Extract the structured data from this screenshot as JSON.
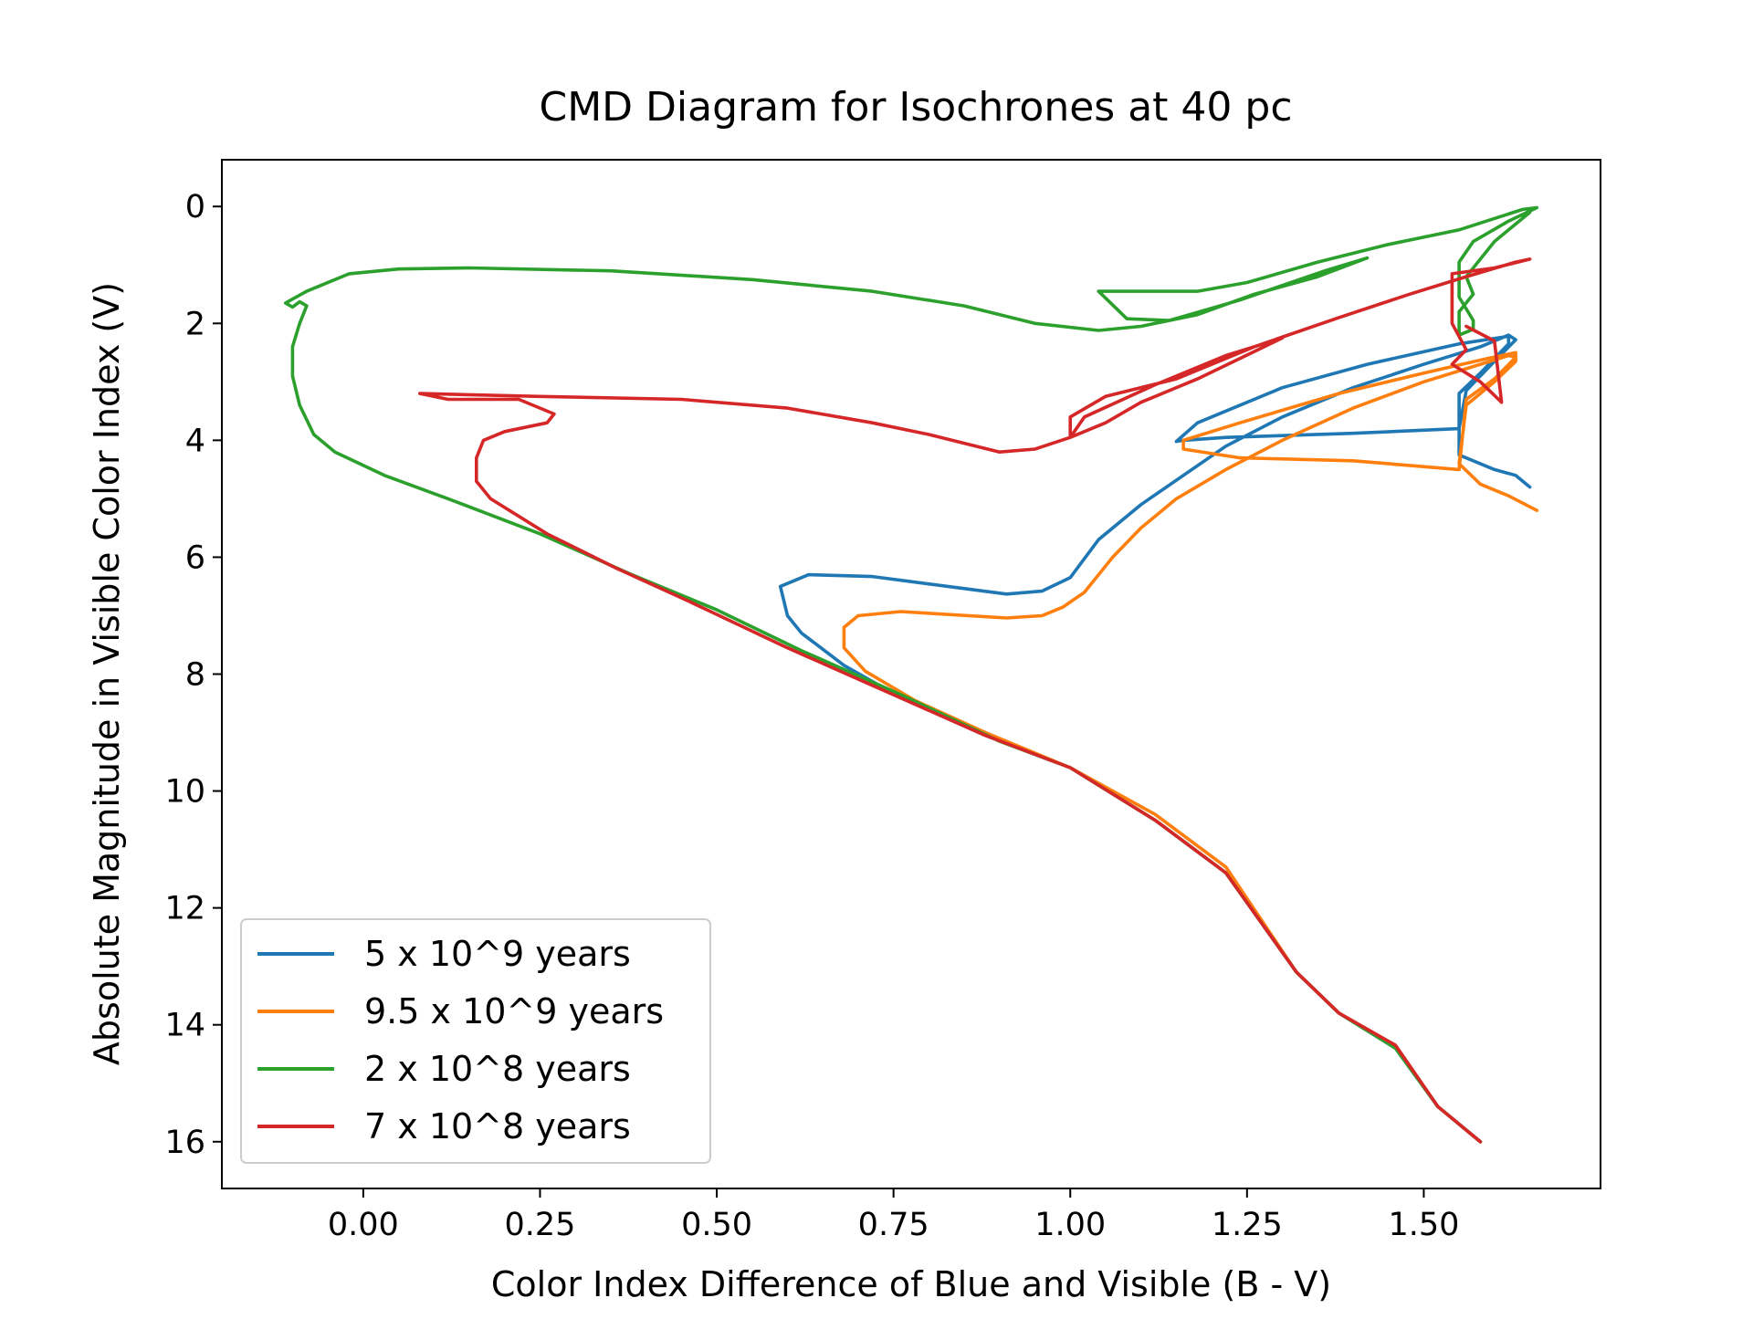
{
  "chart_data": {
    "type": "line",
    "title": "CMD Diagram for Isochrones at 40 pc",
    "xlabel": "Color Index Difference of Blue and Visible (B - V)",
    "ylabel": "Absolute Magnitude in Visible Color Index (V)",
    "xlim": [
      -0.2,
      1.75
    ],
    "ylim": [
      16.8,
      -0.8
    ],
    "y_inverted": true,
    "grid": false,
    "legend_position": "lower-left",
    "xticks": [
      0.0,
      0.25,
      0.5,
      0.75,
      1.0,
      1.25,
      1.5
    ],
    "xtick_labels": [
      "0.00",
      "0.25",
      "0.50",
      "0.75",
      "1.00",
      "1.25",
      "1.50"
    ],
    "yticks": [
      0,
      2,
      4,
      6,
      8,
      10,
      12,
      14,
      16
    ],
    "ytick_labels": [
      "0",
      "2",
      "4",
      "6",
      "8",
      "10",
      "12",
      "14",
      "16"
    ],
    "series": [
      {
        "name": "5 x 10^9 years",
        "color": "#1f77b4",
        "points": [
          [
            1.58,
            16.0
          ],
          [
            1.52,
            15.4
          ],
          [
            1.46,
            14.4
          ],
          [
            1.38,
            13.8
          ],
          [
            1.32,
            13.1
          ],
          [
            1.22,
            11.4
          ],
          [
            1.12,
            10.5
          ],
          [
            1.0,
            9.6
          ],
          [
            0.88,
            9.05
          ],
          [
            0.76,
            8.4
          ],
          [
            0.68,
            7.85
          ],
          [
            0.62,
            7.3
          ],
          [
            0.6,
            7.0
          ],
          [
            0.59,
            6.5
          ],
          [
            0.63,
            6.3
          ],
          [
            0.72,
            6.33
          ],
          [
            0.91,
            6.63
          ],
          [
            0.96,
            6.58
          ],
          [
            1.0,
            6.35
          ],
          [
            1.04,
            5.7
          ],
          [
            1.1,
            5.1
          ],
          [
            1.16,
            4.6
          ],
          [
            1.22,
            4.1
          ],
          [
            1.3,
            3.6
          ],
          [
            1.4,
            3.1
          ],
          [
            1.5,
            2.7
          ],
          [
            1.58,
            2.4
          ],
          [
            1.62,
            2.2
          ],
          [
            1.63,
            2.28
          ],
          [
            1.6,
            2.65
          ],
          [
            1.56,
            3.15
          ],
          [
            1.55,
            3.8
          ],
          [
            1.4,
            3.88
          ],
          [
            1.22,
            3.95
          ],
          [
            1.16,
            4.0
          ],
          [
            1.15,
            4.02
          ],
          [
            1.18,
            3.7
          ],
          [
            1.3,
            3.1
          ],
          [
            1.42,
            2.7
          ],
          [
            1.55,
            2.35
          ],
          [
            1.62,
            2.22
          ],
          [
            1.62,
            2.35
          ],
          [
            1.58,
            2.85
          ],
          [
            1.55,
            3.2
          ],
          [
            1.55,
            4.25
          ],
          [
            1.6,
            4.5
          ],
          [
            1.63,
            4.6
          ],
          [
            1.65,
            4.8
          ]
        ]
      },
      {
        "name": "9.5 x 10^9 years",
        "color": "#ff7f0e",
        "points": [
          [
            1.58,
            16.0
          ],
          [
            1.52,
            15.4
          ],
          [
            1.46,
            14.35
          ],
          [
            1.38,
            13.8
          ],
          [
            1.32,
            13.1
          ],
          [
            1.22,
            11.3
          ],
          [
            1.12,
            10.4
          ],
          [
            1.0,
            9.6
          ],
          [
            0.88,
            9.0
          ],
          [
            0.78,
            8.45
          ],
          [
            0.71,
            7.95
          ],
          [
            0.68,
            7.55
          ],
          [
            0.68,
            7.2
          ],
          [
            0.7,
            7.0
          ],
          [
            0.76,
            6.93
          ],
          [
            0.91,
            7.04
          ],
          [
            0.96,
            7.0
          ],
          [
            0.99,
            6.85
          ],
          [
            1.02,
            6.6
          ],
          [
            1.06,
            6.0
          ],
          [
            1.1,
            5.5
          ],
          [
            1.15,
            5.0
          ],
          [
            1.22,
            4.5
          ],
          [
            1.3,
            4.0
          ],
          [
            1.4,
            3.45
          ],
          [
            1.5,
            3.0
          ],
          [
            1.58,
            2.7
          ],
          [
            1.62,
            2.55
          ],
          [
            1.63,
            2.58
          ],
          [
            1.6,
            2.95
          ],
          [
            1.56,
            3.3
          ],
          [
            1.55,
            4.5
          ],
          [
            1.4,
            4.35
          ],
          [
            1.24,
            4.3
          ],
          [
            1.16,
            4.15
          ],
          [
            1.16,
            4.0
          ],
          [
            1.24,
            3.7
          ],
          [
            1.38,
            3.2
          ],
          [
            1.5,
            2.85
          ],
          [
            1.59,
            2.6
          ],
          [
            1.63,
            2.5
          ],
          [
            1.63,
            2.65
          ],
          [
            1.6,
            3.0
          ],
          [
            1.56,
            3.4
          ],
          [
            1.55,
            4.4
          ],
          [
            1.58,
            4.75
          ],
          [
            1.62,
            4.95
          ],
          [
            1.66,
            5.2
          ]
        ]
      },
      {
        "name": "2 x 10^8 years",
        "color": "#2ca02c",
        "points": [
          [
            1.58,
            16.0
          ],
          [
            1.52,
            15.4
          ],
          [
            1.46,
            14.4
          ],
          [
            1.38,
            13.8
          ],
          [
            1.32,
            13.1
          ],
          [
            1.22,
            11.4
          ],
          [
            1.12,
            10.5
          ],
          [
            1.0,
            9.6
          ],
          [
            0.9,
            9.15
          ],
          [
            0.76,
            8.35
          ],
          [
            0.62,
            7.6
          ],
          [
            0.5,
            6.9
          ],
          [
            0.38,
            6.3
          ],
          [
            0.25,
            5.6
          ],
          [
            0.12,
            5.0
          ],
          [
            0.03,
            4.6
          ],
          [
            -0.04,
            4.2
          ],
          [
            -0.07,
            3.9
          ],
          [
            -0.09,
            3.4
          ],
          [
            -0.1,
            2.9
          ],
          [
            -0.1,
            2.4
          ],
          [
            -0.09,
            2.0
          ],
          [
            -0.08,
            1.7
          ],
          [
            -0.09,
            1.63
          ],
          [
            -0.1,
            1.72
          ],
          [
            -0.11,
            1.65
          ],
          [
            -0.08,
            1.45
          ],
          [
            -0.02,
            1.15
          ],
          [
            0.05,
            1.07
          ],
          [
            0.15,
            1.05
          ],
          [
            0.35,
            1.1
          ],
          [
            0.55,
            1.25
          ],
          [
            0.72,
            1.45
          ],
          [
            0.85,
            1.7
          ],
          [
            0.95,
            2.0
          ],
          [
            1.04,
            2.12
          ],
          [
            1.1,
            2.05
          ],
          [
            1.18,
            1.85
          ],
          [
            1.26,
            1.5
          ],
          [
            1.35,
            1.2
          ],
          [
            1.42,
            0.88
          ],
          [
            1.36,
            1.1
          ],
          [
            1.24,
            1.6
          ],
          [
            1.14,
            1.95
          ],
          [
            1.08,
            1.92
          ],
          [
            1.04,
            1.45
          ],
          [
            1.18,
            1.45
          ],
          [
            1.25,
            1.3
          ],
          [
            1.35,
            0.95
          ],
          [
            1.45,
            0.65
          ],
          [
            1.55,
            0.4
          ],
          [
            1.64,
            0.05
          ],
          [
            1.66,
            0.02
          ],
          [
            1.62,
            0.25
          ],
          [
            1.57,
            0.6
          ],
          [
            1.55,
            0.95
          ],
          [
            1.55,
            1.55
          ],
          [
            1.57,
            1.95
          ],
          [
            1.57,
            2.1
          ],
          [
            1.55,
            2.2
          ],
          [
            1.55,
            1.8
          ],
          [
            1.57,
            1.5
          ],
          [
            1.56,
            1.2
          ],
          [
            1.6,
            0.6
          ],
          [
            1.65,
            0.1
          ]
        ]
      },
      {
        "name": "7 x 10^8 years",
        "color": "#d62728",
        "points": [
          [
            1.58,
            16.0
          ],
          [
            1.52,
            15.4
          ],
          [
            1.46,
            14.35
          ],
          [
            1.38,
            13.8
          ],
          [
            1.32,
            13.1
          ],
          [
            1.22,
            11.4
          ],
          [
            1.12,
            10.5
          ],
          [
            1.0,
            9.6
          ],
          [
            0.88,
            9.05
          ],
          [
            0.74,
            8.3
          ],
          [
            0.6,
            7.55
          ],
          [
            0.46,
            6.75
          ],
          [
            0.36,
            6.2
          ],
          [
            0.26,
            5.6
          ],
          [
            0.18,
            5.0
          ],
          [
            0.16,
            4.7
          ],
          [
            0.16,
            4.3
          ],
          [
            0.17,
            4.0
          ],
          [
            0.2,
            3.85
          ],
          [
            0.26,
            3.7
          ],
          [
            0.27,
            3.55
          ],
          [
            0.22,
            3.3
          ],
          [
            0.12,
            3.3
          ],
          [
            0.08,
            3.2
          ],
          [
            0.25,
            3.25
          ],
          [
            0.45,
            3.3
          ],
          [
            0.6,
            3.45
          ],
          [
            0.72,
            3.7
          ],
          [
            0.8,
            3.9
          ],
          [
            0.9,
            4.2
          ],
          [
            0.95,
            4.15
          ],
          [
            1.0,
            3.95
          ],
          [
            1.05,
            3.7
          ],
          [
            1.1,
            3.35
          ],
          [
            1.18,
            2.95
          ],
          [
            1.3,
            2.25
          ],
          [
            1.22,
            2.55
          ],
          [
            1.12,
            3.05
          ],
          [
            1.02,
            3.6
          ],
          [
            1.0,
            3.95
          ],
          [
            1.0,
            3.6
          ],
          [
            1.05,
            3.25
          ],
          [
            1.15,
            2.95
          ],
          [
            1.26,
            2.4
          ],
          [
            1.38,
            1.9
          ],
          [
            1.48,
            1.5
          ],
          [
            1.56,
            1.2
          ],
          [
            1.63,
            0.95
          ],
          [
            1.65,
            0.9
          ],
          [
            1.6,
            1.05
          ],
          [
            1.54,
            1.15
          ],
          [
            1.54,
            2.0
          ],
          [
            1.56,
            2.45
          ],
          [
            1.54,
            2.7
          ],
          [
            1.58,
            3.0
          ],
          [
            1.61,
            3.35
          ],
          [
            1.6,
            2.3
          ],
          [
            1.56,
            2.05
          ]
        ]
      }
    ]
  }
}
